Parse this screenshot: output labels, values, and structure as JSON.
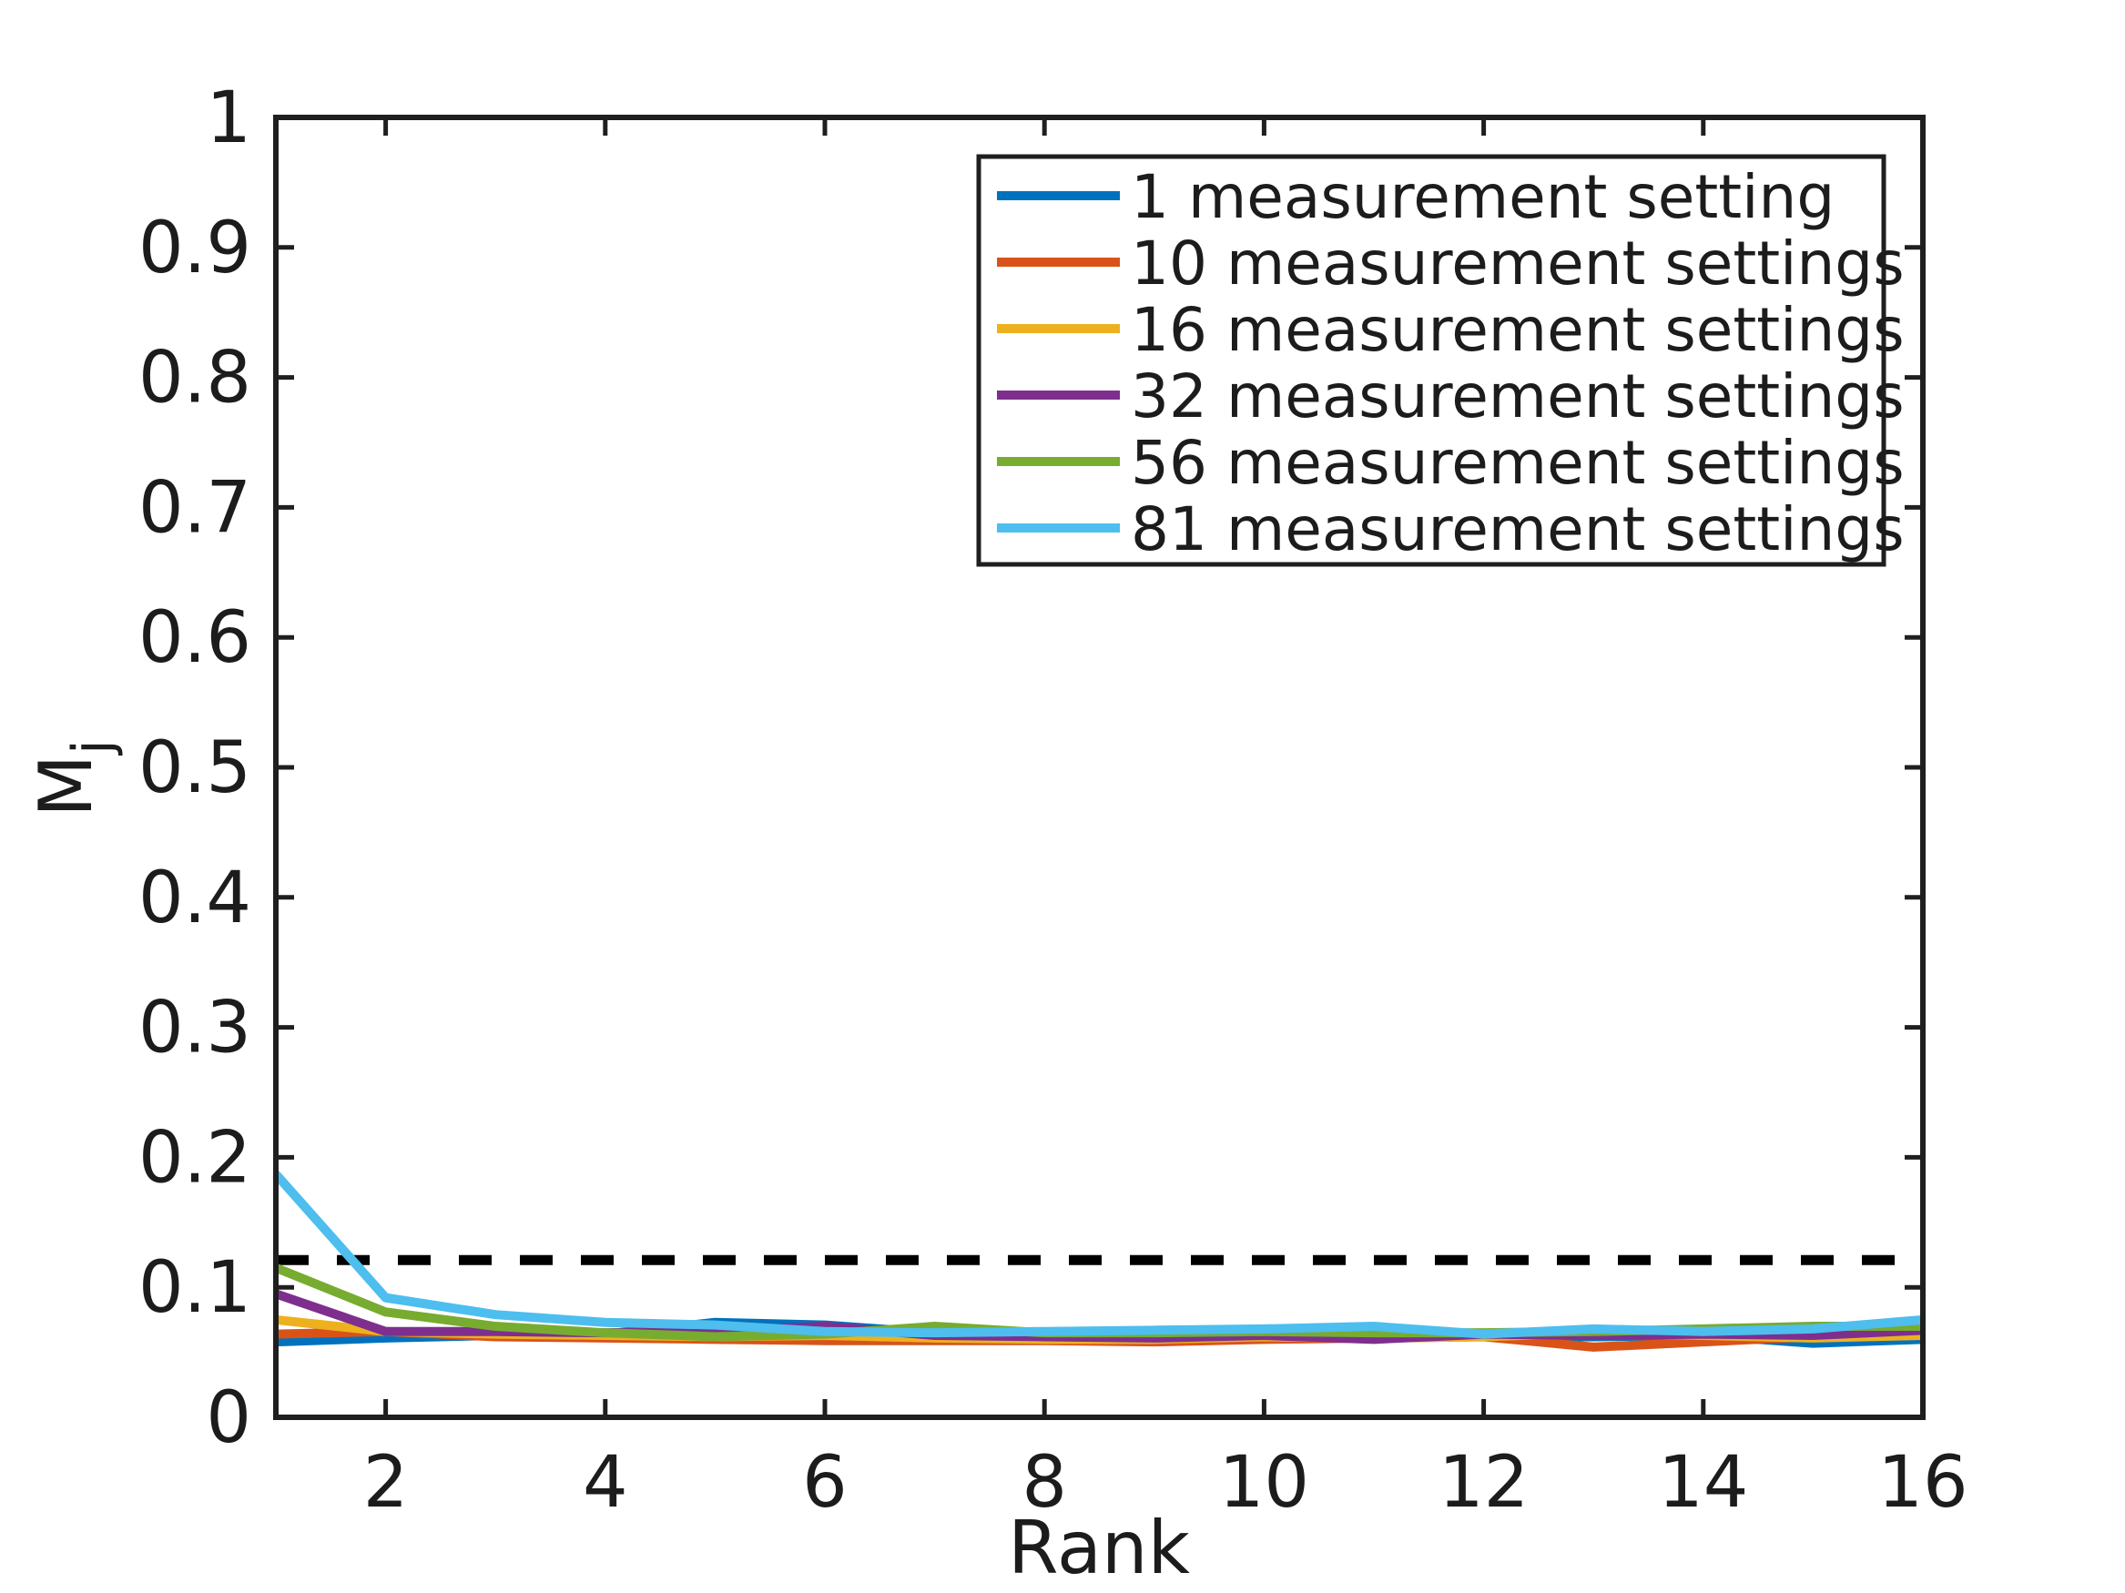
{
  "figure": {
    "background": "#ffffff",
    "text_color": "#1c1c1c",
    "axis_color": "#1f1f1f"
  },
  "chart_data": {
    "type": "line",
    "title": "",
    "xlabel": "Rank",
    "ylabel": "M_j",
    "ylabel_base": "M",
    "ylabel_subscript": "j",
    "xlim": [
      1,
      16
    ],
    "ylim": [
      0,
      1
    ],
    "xticks": [
      2,
      4,
      6,
      8,
      10,
      12,
      14,
      16
    ],
    "yticks": [
      0,
      0.1,
      0.2,
      0.3,
      0.4,
      0.5,
      0.6,
      0.7,
      0.8,
      0.9,
      1
    ],
    "ytick_labels": [
      "0",
      "0.1",
      "0.2",
      "0.3",
      "0.4",
      "0.5",
      "0.6",
      "0.7",
      "0.8",
      "0.9",
      "1"
    ],
    "grid": false,
    "box": true,
    "legend_position": "top-right-inside",
    "x": [
      1,
      2,
      3,
      4,
      5,
      6,
      7,
      8,
      9,
      10,
      11,
      12,
      13,
      14,
      15,
      16
    ],
    "series": [
      {
        "name": "1 measurement setting",
        "color": "#0072BD",
        "values": [
          0.058,
          0.061,
          0.063,
          0.064,
          0.073,
          0.071,
          0.065,
          0.061,
          0.059,
          0.062,
          0.063,
          0.062,
          0.062,
          0.063,
          0.057,
          0.06
        ]
      },
      {
        "name": "10 measurement settings",
        "color": "#D95319",
        "values": [
          0.064,
          0.066,
          0.062,
          0.061,
          0.06,
          0.059,
          0.059,
          0.059,
          0.058,
          0.06,
          0.061,
          0.062,
          0.054,
          0.058,
          0.062,
          0.064
        ]
      },
      {
        "name": "16 measurement settings",
        "color": "#EDB120",
        "values": [
          0.075,
          0.066,
          0.064,
          0.063,
          0.062,
          0.063,
          0.061,
          0.06,
          0.06,
          0.062,
          0.061,
          0.062,
          0.065,
          0.063,
          0.061,
          0.063
        ]
      },
      {
        "name": "32 measurement settings",
        "color": "#7E2F8E",
        "values": [
          0.095,
          0.066,
          0.066,
          0.065,
          0.066,
          0.07,
          0.063,
          0.062,
          0.061,
          0.063,
          0.06,
          0.064,
          0.063,
          0.064,
          0.063,
          0.067
        ]
      },
      {
        "name": "56 measurement settings",
        "color": "#77AC30",
        "values": [
          0.115,
          0.081,
          0.07,
          0.065,
          0.062,
          0.064,
          0.07,
          0.065,
          0.065,
          0.066,
          0.065,
          0.065,
          0.066,
          0.068,
          0.07,
          0.07
        ]
      },
      {
        "name": "81 measurement settings",
        "color": "#4DBEEE",
        "values": [
          0.187,
          0.092,
          0.079,
          0.073,
          0.071,
          0.066,
          0.065,
          0.066,
          0.067,
          0.068,
          0.07,
          0.064,
          0.068,
          0.066,
          0.068,
          0.075
        ]
      }
    ],
    "threshold_line": {
      "y": 0.121,
      "style": "dashed",
      "color": "#000000"
    }
  }
}
